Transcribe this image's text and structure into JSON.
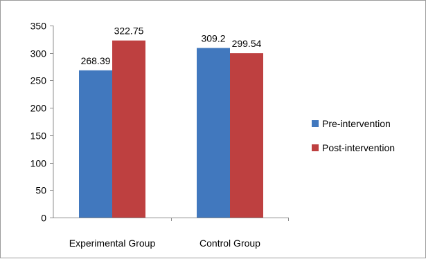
{
  "chart_data": {
    "type": "bar",
    "categories": [
      "Experimental Group",
      "Control Group"
    ],
    "series": [
      {
        "name": "Pre-intervention",
        "values": [
          268.39,
          309.2
        ],
        "value_labels": [
          "268.39",
          "309.2"
        ],
        "color": "#4178BE"
      },
      {
        "name": "Post-intervention",
        "values": [
          322.75,
          299.54
        ],
        "value_labels": [
          "322.75",
          "299.54"
        ],
        "color": "#BE4040"
      }
    ],
    "ylim": [
      0,
      350
    ],
    "yticks": [
      0,
      50,
      100,
      150,
      200,
      250,
      300,
      350
    ],
    "grid": false,
    "legend_position": "right",
    "title": "",
    "xlabel": "",
    "ylabel": ""
  }
}
